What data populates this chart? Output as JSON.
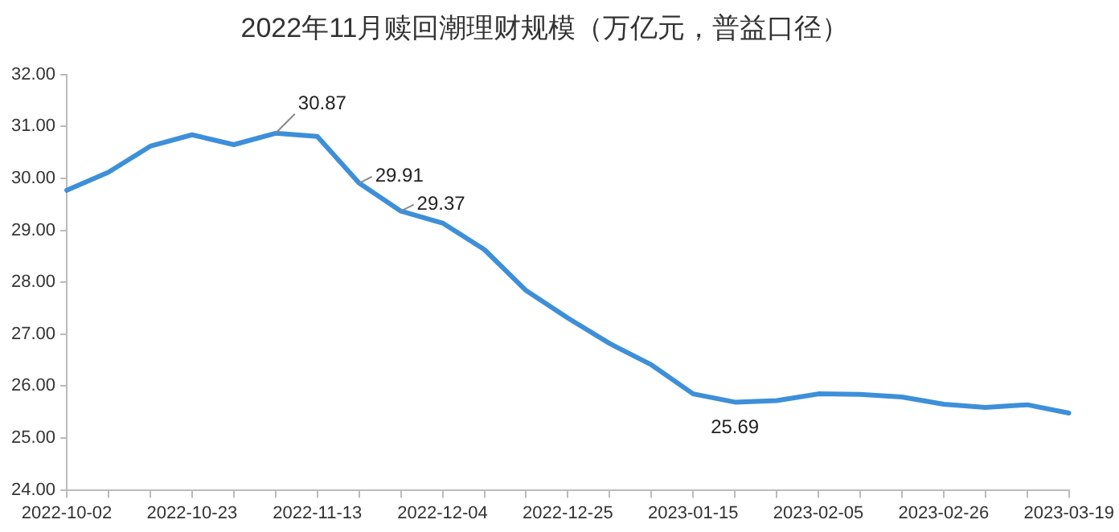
{
  "chart_data": {
    "type": "line",
    "title": "2022年11月赎回潮理财规模（万亿元，普益口径）",
    "categories": [
      "2022-10-02",
      null,
      null,
      "2022-10-23",
      null,
      null,
      "2022-11-13",
      null,
      null,
      "2022-12-04",
      null,
      null,
      "2022-12-25",
      null,
      null,
      "2023-01-15",
      null,
      null,
      "2023-02-05",
      null,
      null,
      "2023-02-26",
      null,
      null,
      "2023-03-19"
    ],
    "series": [
      {
        "color": "#3d8fd9",
        "values": [
          29.77,
          30.12,
          30.62,
          30.84,
          30.65,
          30.87,
          30.81,
          29.91,
          29.37,
          29.14,
          28.63,
          27.84,
          27.31,
          26.82,
          26.41,
          25.85,
          25.69,
          25.72,
          25.85,
          25.84,
          25.79,
          25.65,
          25.59,
          25.64,
          25.48
        ],
        "value_labels": [
          null,
          null,
          null,
          null,
          null,
          "30.87",
          null,
          "29.91",
          "29.37",
          null,
          null,
          null,
          null,
          null,
          null,
          null,
          "25.69",
          null,
          null,
          null,
          null,
          null,
          null,
          null,
          null
        ]
      }
    ],
    "ylim": [
      24,
      32
    ],
    "yticks": [
      {
        "value": 24,
        "label": "24.00"
      },
      {
        "value": 25,
        "label": "25.00"
      },
      {
        "value": 26,
        "label": "26.00"
      },
      {
        "value": 27,
        "label": "27.00"
      },
      {
        "value": 28,
        "label": "28.00"
      },
      {
        "value": 29,
        "label": "29.00"
      },
      {
        "value": 30,
        "label": "30.00"
      },
      {
        "value": 31,
        "label": "31.00"
      },
      {
        "value": 32,
        "label": "32.00"
      }
    ],
    "grid": false,
    "legend": false,
    "marker": "none",
    "line_style": "solid"
  }
}
